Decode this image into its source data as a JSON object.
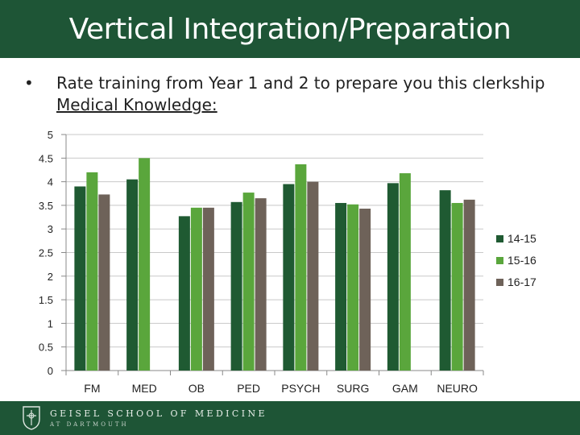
{
  "header": {
    "title": "Vertical Integration/Preparation"
  },
  "bullet": {
    "marker": "•",
    "text": "Rate training from Year 1 and 2 to prepare you this clerkship",
    "subtext": "Medical Knowledge:"
  },
  "footer": {
    "school_line1": "GEISEL SCHOOL OF MEDICINE",
    "school_line2": "AT DARTMOUTH"
  },
  "colors": {
    "header_bg": "#1e5536",
    "series_1": "#1f5a32",
    "series_2": "#5aa63c",
    "series_3": "#6e6259"
  },
  "chart_data": {
    "type": "bar",
    "categories": [
      "FM",
      "MED",
      "OB",
      "PED",
      "PSYCH",
      "SURG",
      "GAM",
      "NEURO"
    ],
    "series": [
      {
        "name": "14-15",
        "color": "#1f5a32",
        "values": [
          3.9,
          4.05,
          3.27,
          3.57,
          3.95,
          3.55,
          3.97,
          3.82
        ]
      },
      {
        "name": "15-16",
        "color": "#5aa63c",
        "values": [
          4.2,
          4.5,
          3.45,
          3.77,
          4.37,
          3.52,
          4.18,
          3.55
        ]
      },
      {
        "name": "16-17",
        "color": "#6e6259",
        "values": [
          3.73,
          null,
          3.45,
          3.65,
          4.0,
          3.43,
          null,
          3.62
        ]
      }
    ],
    "y_ticks": [
      "0",
      "0.5",
      "1",
      "1.5",
      "2",
      "2.5",
      "3",
      "3.5",
      "4",
      "4.5",
      "5"
    ],
    "ylim": [
      0,
      5
    ],
    "grid": true,
    "legend_position": "right"
  }
}
